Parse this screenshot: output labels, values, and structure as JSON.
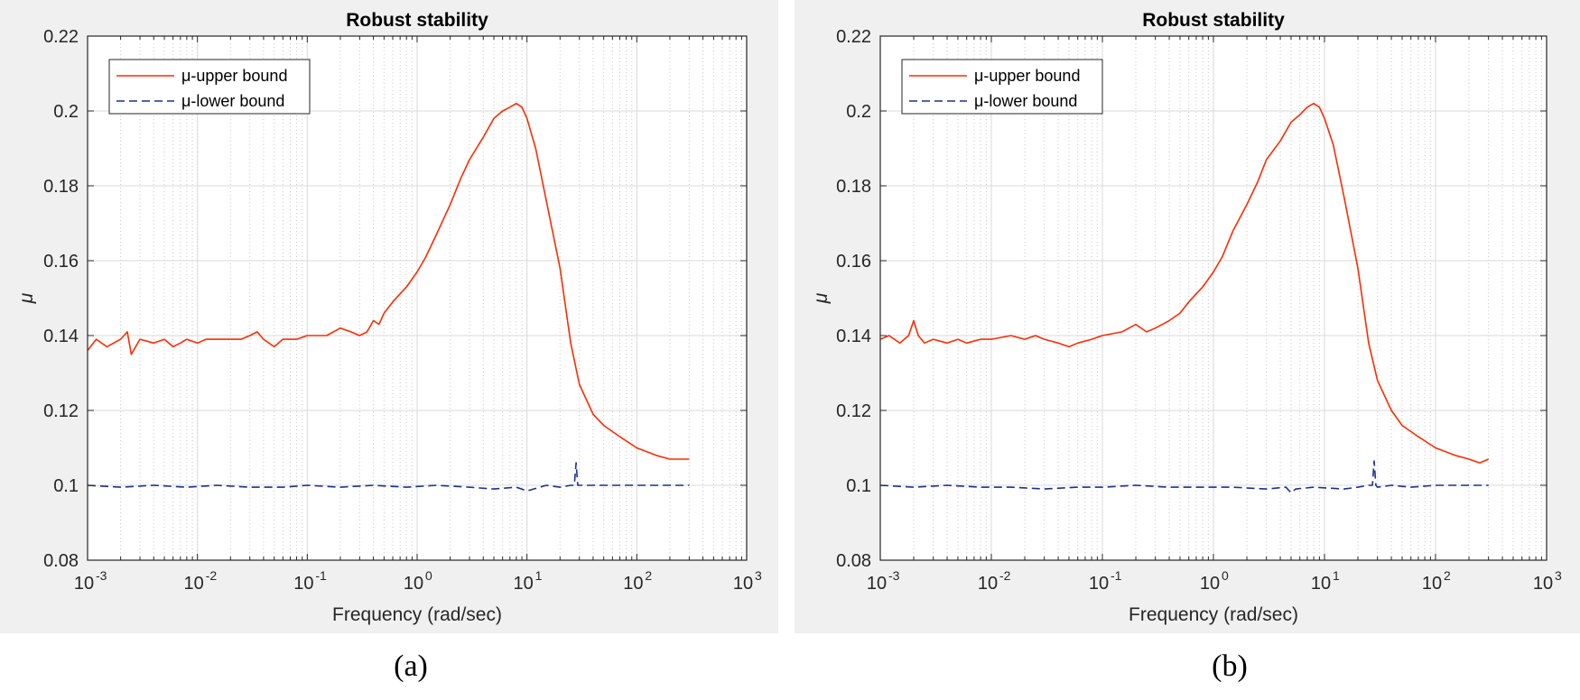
{
  "colors": {
    "upper": "#ff2a00",
    "lower": "#1f2f8f",
    "grid": "#d9d9d9",
    "panel_bg": "#f0f0f0",
    "axes_bg": "#ffffff"
  },
  "captions": [
    "(a)",
    "(b)"
  ],
  "chart_data": [
    {
      "type": "line",
      "panel": "a",
      "title": "Robust stability",
      "xlabel": "Frequency (rad/sec)",
      "ylabel": "μ",
      "xscale": "log",
      "xlim": [
        0.001,
        1000
      ],
      "ylim": [
        0.08,
        0.22
      ],
      "xtick_exponents": [
        "-3",
        "-2",
        "-1",
        "0",
        "1",
        "2",
        "3"
      ],
      "xtick_base": "10",
      "ytick_labels": [
        "0.08",
        "0.1",
        "0.12",
        "0.14",
        "0.16",
        "0.18",
        "0.2",
        "0.22"
      ],
      "grid": true,
      "legend_position": "top-left",
      "series": [
        {
          "name": "μ-upper bound",
          "style": "solid",
          "color": "#ff2a00",
          "x": [
            0.001,
            0.0012,
            0.0015,
            0.002,
            0.0023,
            0.0025,
            0.003,
            0.004,
            0.005,
            0.006,
            0.007,
            0.008,
            0.01,
            0.012,
            0.015,
            0.02,
            0.025,
            0.03,
            0.035,
            0.04,
            0.05,
            0.06,
            0.08,
            0.1,
            0.15,
            0.2,
            0.25,
            0.3,
            0.35,
            0.4,
            0.45,
            0.5,
            0.6,
            0.8,
            1.0,
            1.2,
            1.5,
            2.0,
            2.5,
            3.0,
            4.0,
            5.0,
            6.0,
            7.0,
            8.0,
            9.0,
            10.0,
            12.0,
            15.0,
            20.0,
            25.0,
            30.0,
            40.0,
            50.0,
            70.0,
            100.0,
            150.0,
            200.0,
            250.0,
            300.0
          ],
          "y": [
            0.136,
            0.139,
            0.137,
            0.139,
            0.141,
            0.135,
            0.139,
            0.138,
            0.139,
            0.137,
            0.138,
            0.139,
            0.138,
            0.139,
            0.139,
            0.139,
            0.139,
            0.14,
            0.141,
            0.139,
            0.137,
            0.139,
            0.139,
            0.14,
            0.14,
            0.142,
            0.141,
            0.14,
            0.141,
            0.144,
            0.143,
            0.146,
            0.149,
            0.153,
            0.157,
            0.161,
            0.167,
            0.175,
            0.182,
            0.187,
            0.193,
            0.198,
            0.2,
            0.201,
            0.202,
            0.201,
            0.198,
            0.19,
            0.176,
            0.158,
            0.138,
            0.127,
            0.119,
            0.116,
            0.113,
            0.11,
            0.108,
            0.107,
            0.107,
            0.107
          ]
        },
        {
          "name": "μ-lower bound",
          "style": "dashed",
          "color": "#1f2f8f",
          "x": [
            0.001,
            0.002,
            0.004,
            0.008,
            0.015,
            0.03,
            0.06,
            0.1,
            0.2,
            0.4,
            0.8,
            1.5,
            3.0,
            5.0,
            8.0,
            10.0,
            15.0,
            20.0,
            25.0,
            27.0,
            28.0,
            29.0,
            30.0,
            40.0,
            60.0,
            100.0,
            200.0,
            300.0
          ],
          "y": [
            0.1,
            0.0995,
            0.1,
            0.0995,
            0.1,
            0.0995,
            0.0995,
            0.1,
            0.0995,
            0.1,
            0.0995,
            0.1,
            0.0995,
            0.099,
            0.0995,
            0.0985,
            0.1,
            0.0995,
            0.1,
            0.1,
            0.106,
            0.1,
            0.1,
            0.1,
            0.1,
            0.1,
            0.1,
            0.1
          ]
        }
      ]
    },
    {
      "type": "line",
      "panel": "b",
      "title": "Robust stability",
      "xlabel": "Frequency (rad/sec)",
      "ylabel": "μ",
      "xscale": "log",
      "xlim": [
        0.001,
        1000
      ],
      "ylim": [
        0.08,
        0.22
      ],
      "xtick_exponents": [
        "-3",
        "-2",
        "-1",
        "0",
        "1",
        "2",
        "3"
      ],
      "xtick_base": "10",
      "ytick_labels": [
        "0.08",
        "0.1",
        "0.12",
        "0.14",
        "0.16",
        "0.18",
        "0.2",
        "0.22"
      ],
      "grid": true,
      "legend_position": "top-left",
      "series": [
        {
          "name": "μ-upper bound",
          "style": "solid",
          "color": "#ff2a00",
          "x": [
            0.001,
            0.0012,
            0.0015,
            0.0018,
            0.002,
            0.0022,
            0.0025,
            0.003,
            0.004,
            0.005,
            0.006,
            0.008,
            0.01,
            0.015,
            0.02,
            0.025,
            0.03,
            0.04,
            0.05,
            0.06,
            0.08,
            0.1,
            0.15,
            0.2,
            0.25,
            0.3,
            0.4,
            0.5,
            0.6,
            0.8,
            1.0,
            1.2,
            1.5,
            2.0,
            2.5,
            3.0,
            4.0,
            5.0,
            6.0,
            7.0,
            8.0,
            9.0,
            10.0,
            12.0,
            15.0,
            20.0,
            25.0,
            30.0,
            40.0,
            50.0,
            70.0,
            100.0,
            150.0,
            200.0,
            250.0,
            300.0
          ],
          "y": [
            0.139,
            0.14,
            0.138,
            0.14,
            0.144,
            0.14,
            0.138,
            0.139,
            0.138,
            0.139,
            0.138,
            0.139,
            0.139,
            0.14,
            0.139,
            0.14,
            0.139,
            0.138,
            0.137,
            0.138,
            0.139,
            0.14,
            0.141,
            0.143,
            0.141,
            0.142,
            0.144,
            0.146,
            0.149,
            0.153,
            0.157,
            0.161,
            0.168,
            0.175,
            0.181,
            0.187,
            0.192,
            0.197,
            0.199,
            0.201,
            0.202,
            0.201,
            0.198,
            0.191,
            0.177,
            0.158,
            0.138,
            0.128,
            0.12,
            0.116,
            0.113,
            0.11,
            0.108,
            0.107,
            0.106,
            0.107
          ]
        },
        {
          "name": "μ-lower bound",
          "style": "dashed",
          "color": "#1f2f8f",
          "x": [
            0.001,
            0.002,
            0.004,
            0.008,
            0.015,
            0.03,
            0.06,
            0.1,
            0.2,
            0.4,
            0.8,
            1.5,
            3.0,
            4.5,
            5.0,
            5.5,
            8.0,
            15.0,
            20.0,
            25.0,
            27.0,
            28.0,
            29.0,
            30.0,
            40.0,
            60.0,
            100.0,
            200.0,
            300.0
          ],
          "y": [
            0.1,
            0.0995,
            0.1,
            0.0995,
            0.0995,
            0.099,
            0.0995,
            0.0995,
            0.1,
            0.0995,
            0.0995,
            0.0995,
            0.099,
            0.0995,
            0.098,
            0.099,
            0.0995,
            0.099,
            0.0995,
            0.1,
            0.1,
            0.1065,
            0.1,
            0.0995,
            0.1,
            0.0995,
            0.1,
            0.1,
            0.1
          ]
        }
      ]
    }
  ]
}
